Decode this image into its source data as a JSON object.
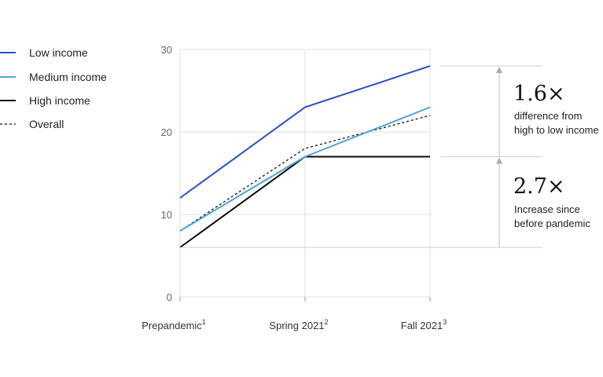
{
  "chart_data": {
    "type": "line",
    "categories": [
      "Prepandemic",
      "Spring 2021",
      "Fall 2021"
    ],
    "category_footnotes": [
      "1",
      "2",
      "3"
    ],
    "ylim": [
      0,
      30
    ],
    "yticks": [
      0,
      10,
      20,
      30
    ],
    "grid": true,
    "legend_placement": "left",
    "series": [
      {
        "name": "Low income",
        "values": [
          12,
          23,
          28
        ],
        "color": "#2b50c0",
        "style": "solid"
      },
      {
        "name": "Medium income",
        "values": [
          8,
          17,
          23
        ],
        "color": "#4fa3d8",
        "style": "solid"
      },
      {
        "name": "High income",
        "values": [
          6,
          17,
          17
        ],
        "color": "#0b0b0b",
        "style": "solid"
      },
      {
        "name": "Overall",
        "values": [
          8,
          18,
          22
        ],
        "color": "#111111",
        "style": "dashed"
      }
    ],
    "annotations": [
      {
        "value": "1.6×",
        "text_lines": [
          "difference from",
          "high to low income"
        ]
      },
      {
        "value": "2.7×",
        "text_lines": [
          "Increase since",
          "before pandemic"
        ]
      }
    ]
  }
}
